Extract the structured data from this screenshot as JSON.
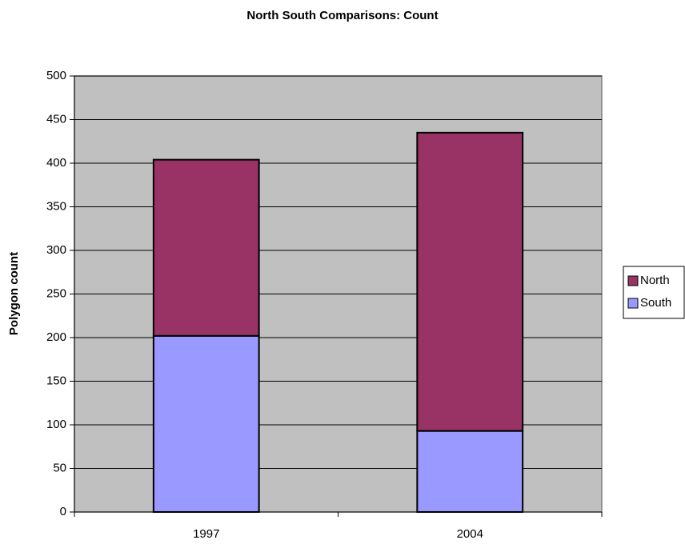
{
  "chart_data": {
    "type": "stacked_bar",
    "title": "North South Comparisons: Count",
    "y_label": "Polygon count",
    "categories": [
      "1997",
      "2004"
    ],
    "series": [
      {
        "name": "South",
        "color": "#9999ff",
        "values": [
          202,
          93
        ]
      },
      {
        "name": "North",
        "color": "#993366",
        "values": [
          202,
          342
        ]
      }
    ],
    "ylim": [
      0,
      500
    ],
    "yticks": [
      0,
      50,
      100,
      150,
      200,
      250,
      300,
      350,
      400,
      450,
      500
    ],
    "grid": true,
    "legend": "right",
    "plot_background": "#c0c0c0"
  }
}
